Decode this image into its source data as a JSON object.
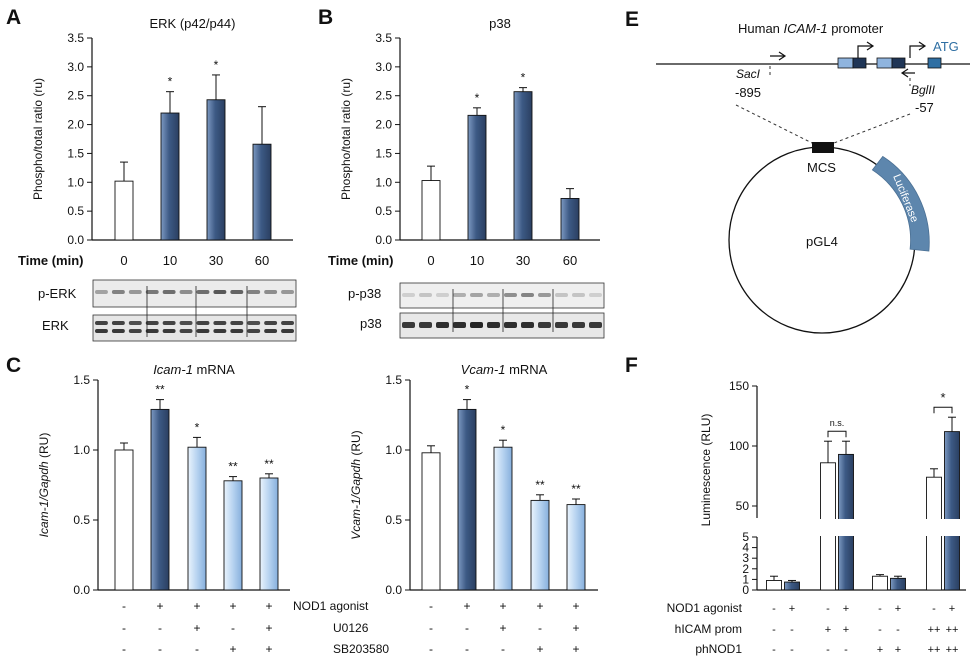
{
  "colors": {
    "navy_dark": "#2f466a",
    "navy_light": "#7d9ac2",
    "sky_dark": "#8db6e2",
    "sky_light": "#dcecfb",
    "luciferase": "#5d86ad",
    "exon_light": "#8fb4de",
    "exon_dark": "#1f3556",
    "atg": "#2f6fa3"
  },
  "panels": {
    "A": "A",
    "B": "B",
    "C": "C",
    "E": "E",
    "F": "F"
  },
  "blots": {
    "A": {
      "time_label": "Time (min)",
      "phospho_label": "p-ERK",
      "total_label": "ERK"
    },
    "B": {
      "time_label": "Time (min)",
      "phospho_label": "p-p38",
      "total_label": "p38"
    }
  },
  "condition_rows": {
    "C": [
      {
        "label": "NOD1 agonist",
        "marks": [
          "-",
          "+",
          "+",
          "+",
          "+"
        ]
      },
      {
        "label": "U0126",
        "marks": [
          "-",
          "-",
          "+",
          "-",
          "+"
        ]
      },
      {
        "label": "SB203580",
        "marks": [
          "-",
          "-",
          "-",
          "+",
          "+"
        ]
      }
    ],
    "F": [
      {
        "label": "NOD1 agonist",
        "marks": [
          "-",
          "+",
          "-",
          "+",
          "-",
          "+",
          "-",
          "+"
        ]
      },
      {
        "label": "hICAM prom",
        "marks": [
          "-",
          "-",
          "+",
          "+",
          "-",
          "-",
          "++",
          "++"
        ]
      },
      {
        "label": "phNOD1",
        "marks": [
          "-",
          "-",
          "-",
          "-",
          "+",
          "+",
          "++",
          "++"
        ]
      }
    ]
  },
  "schematic": {
    "promoter_prefix": "Human ",
    "promoter_gene": "ICAM-1",
    "promoter_suffix": " promoter",
    "atg": "ATG",
    "sac_name": "SacI",
    "sac_pos": "-895",
    "bgl_name": "BglII",
    "bgl_pos": "-57",
    "mcs": "MCS",
    "vector": "pGL4",
    "reporter": "Luciferase"
  },
  "chart_data": [
    {
      "id": "A",
      "type": "bar",
      "title": "ERK (p42/p44)",
      "ylabel": "Phospho/total ratio (ru)",
      "xlabel": "Time (min)",
      "categories": [
        "0",
        "10",
        "30",
        "60"
      ],
      "values": [
        1.02,
        2.2,
        2.43,
        1.66
      ],
      "errors": [
        0.33,
        0.37,
        0.43,
        0.65
      ],
      "significance": [
        "",
        "*",
        "*",
        ""
      ],
      "ylim": [
        0,
        3.5
      ],
      "yticks": [
        "0.0",
        "0.5",
        "1.0",
        "1.5",
        "2.0",
        "2.5",
        "3.0",
        "3.5"
      ]
    },
    {
      "id": "B",
      "type": "bar",
      "title": "p38",
      "ylabel": "Phospho/total ratio (ru)",
      "xlabel": "Time (min)",
      "categories": [
        "0",
        "10",
        "30",
        "60"
      ],
      "values": [
        1.03,
        2.16,
        2.57,
        0.72
      ],
      "errors": [
        0.25,
        0.13,
        0.07,
        0.17
      ],
      "significance": [
        "",
        "*",
        "*",
        ""
      ],
      "ylim": [
        0,
        3.5
      ],
      "yticks": [
        "0.0",
        "0.5",
        "1.0",
        "1.5",
        "2.0",
        "2.5",
        "3.0",
        "3.5"
      ]
    },
    {
      "id": "C1",
      "type": "bar",
      "title": "Icam-1 mRNA",
      "ylabel": "Icam-1/Gapdh (RU)",
      "values": [
        1.0,
        1.29,
        1.02,
        0.78,
        0.8
      ],
      "errors": [
        0.05,
        0.07,
        0.07,
        0.03,
        0.03
      ],
      "significance": [
        "",
        "**",
        "*",
        "**",
        "**"
      ],
      "ylim": [
        0,
        1.5
      ],
      "yticks": [
        "0.0",
        "0.5",
        "1.0",
        "1.5"
      ]
    },
    {
      "id": "C2",
      "type": "bar",
      "title": "Vcam-1 mRNA",
      "ylabel": "Vcam-1/Gapdh (RU)",
      "values": [
        0.98,
        1.29,
        1.02,
        0.64,
        0.61
      ],
      "errors": [
        0.05,
        0.07,
        0.05,
        0.04,
        0.04
      ],
      "significance": [
        "",
        "*",
        "*",
        "**",
        "**"
      ],
      "ylim": [
        0,
        1.5
      ],
      "yticks": [
        "0.0",
        "0.5",
        "1.0",
        "1.5"
      ]
    },
    {
      "id": "F",
      "type": "bar",
      "ylabel": "Luminescence (RLU)",
      "axis_break": true,
      "values": [
        0.9,
        0.75,
        86,
        93,
        1.3,
        1.1,
        74,
        112
      ],
      "errors": [
        0.4,
        0.15,
        18,
        11,
        0.15,
        0.2,
        7,
        12
      ],
      "significance_brackets": [
        {
          "from": 2,
          "to": 3,
          "label": "n.s."
        },
        {
          "from": 6,
          "to": 7,
          "label": "*"
        }
      ],
      "lower_ylim": [
        0,
        5
      ],
      "upper_ylim": [
        40,
        150
      ],
      "yticks_lower": [
        "0",
        "1",
        "2",
        "3",
        "4",
        "5"
      ],
      "yticks_upper": [
        "50",
        "100",
        "150"
      ]
    }
  ]
}
